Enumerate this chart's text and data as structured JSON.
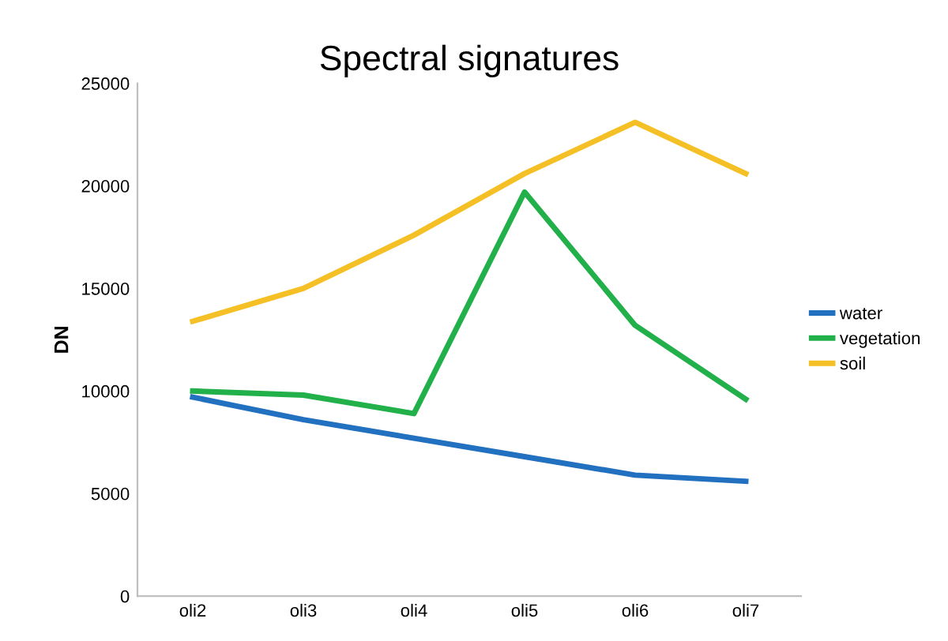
{
  "chart_data": {
    "type": "line",
    "title": "Spectral signatures",
    "ylabel": "DN",
    "categories": [
      "oli2",
      "oli3",
      "oli4",
      "oli5",
      "oli6",
      "oli7"
    ],
    "series": [
      {
        "name": "water",
        "color": "#2270c0",
        "values": [
          9700,
          8600,
          7700,
          6800,
          5900,
          5600
        ]
      },
      {
        "name": "vegetation",
        "color": "#22b04a",
        "values": [
          10000,
          9800,
          8900,
          19700,
          13200,
          9600
        ]
      },
      {
        "name": "soil",
        "color": "#f5c025",
        "values": [
          13400,
          15000,
          17600,
          20600,
          23100,
          20600
        ]
      }
    ],
    "ylim": [
      0,
      25000
    ],
    "yticks": [
      0,
      5000,
      10000,
      15000,
      20000,
      25000
    ],
    "grid": false,
    "legend": "right",
    "marker": "none",
    "line_style": "solid"
  }
}
